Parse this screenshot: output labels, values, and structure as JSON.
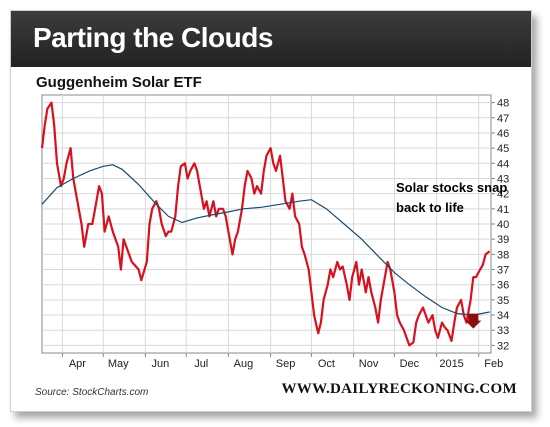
{
  "header": {
    "title": "Parting the Clouds"
  },
  "footer": {
    "source": "Source: StockCharts.com",
    "site": "WWW.DAILYRECKONING.COM"
  },
  "colors": {
    "header_bg": "#2b2b2b",
    "price_line": "#d8111e",
    "ma_line": "#1a4a6e",
    "arrow": "#8b0e0e",
    "grid": "#d9d9d9",
    "axis": "#888888"
  },
  "chart_data": {
    "type": "line",
    "title": "Guggenheim Solar ETF",
    "annotation": "Solar stocks snap back to life",
    "x_start": "2014-03-17",
    "x_tick_labels": [
      "Apr",
      "May",
      "Jun",
      "Jul",
      "Aug",
      "Sep",
      "Oct",
      "Nov",
      "Dec",
      "2015",
      "Feb"
    ],
    "x_tick_dates": [
      "2014-04-01",
      "2014-05-01",
      "2014-06-01",
      "2014-07-01",
      "2014-08-01",
      "2014-09-01",
      "2014-10-01",
      "2014-11-01",
      "2014-12-01",
      "2015-01-01",
      "2015-02-01"
    ],
    "ylim": [
      31.5,
      48.5
    ],
    "y_ticks": [
      32,
      33,
      34,
      35,
      36,
      37,
      38,
      39,
      40,
      41,
      42,
      43,
      44,
      45,
      46,
      47,
      48
    ],
    "grid": true,
    "series": [
      {
        "style": "price",
        "points": [
          [
            "2014-03-17",
            45.0
          ],
          [
            "2014-03-19",
            46.5
          ],
          [
            "2014-03-21",
            47.6
          ],
          [
            "2014-03-24",
            48.0
          ],
          [
            "2014-03-26",
            46.5
          ],
          [
            "2014-03-28",
            44.0
          ],
          [
            "2014-03-31",
            42.5
          ],
          [
            "2014-04-02",
            43.0
          ],
          [
            "2014-04-04",
            44.0
          ],
          [
            "2014-04-07",
            45.0
          ],
          [
            "2014-04-09",
            43.0
          ],
          [
            "2014-04-11",
            42.0
          ],
          [
            "2014-04-15",
            40.0
          ],
          [
            "2014-04-17",
            38.5
          ],
          [
            "2014-04-20",
            40.0
          ],
          [
            "2014-04-23",
            40.0
          ],
          [
            "2014-04-25",
            41.0
          ],
          [
            "2014-04-28",
            42.5
          ],
          [
            "2014-04-30",
            42.0
          ],
          [
            "2014-05-02",
            39.5
          ],
          [
            "2014-05-05",
            40.5
          ],
          [
            "2014-05-08",
            39.5
          ],
          [
            "2014-05-12",
            38.5
          ],
          [
            "2014-05-14",
            37.0
          ],
          [
            "2014-05-16",
            39.0
          ],
          [
            "2014-05-20",
            38.0
          ],
          [
            "2014-05-22",
            37.5
          ],
          [
            "2014-05-27",
            37.0
          ],
          [
            "2014-05-29",
            36.3
          ],
          [
            "2014-06-02",
            37.5
          ],
          [
            "2014-06-04",
            40.0
          ],
          [
            "2014-06-06",
            41.0
          ],
          [
            "2014-06-09",
            41.5
          ],
          [
            "2014-06-11",
            41.0
          ],
          [
            "2014-06-13",
            40.0
          ],
          [
            "2014-06-16",
            39.2
          ],
          [
            "2014-06-18",
            39.5
          ],
          [
            "2014-06-20",
            39.5
          ],
          [
            "2014-06-23",
            40.5
          ],
          [
            "2014-06-25",
            42.5
          ],
          [
            "2014-06-27",
            43.8
          ],
          [
            "2014-06-30",
            44.0
          ],
          [
            "2014-07-02",
            43.0
          ],
          [
            "2014-07-04",
            43.5
          ],
          [
            "2014-07-07",
            44.0
          ],
          [
            "2014-07-09",
            43.5
          ],
          [
            "2014-07-11",
            42.5
          ],
          [
            "2014-07-14",
            41.0
          ],
          [
            "2014-07-16",
            41.5
          ],
          [
            "2014-07-18",
            40.5
          ],
          [
            "2014-07-21",
            41.5
          ],
          [
            "2014-07-23",
            40.5
          ],
          [
            "2014-07-25",
            41.0
          ],
          [
            "2014-07-28",
            41.0
          ],
          [
            "2014-07-30",
            40.5
          ],
          [
            "2014-08-01",
            39.5
          ],
          [
            "2014-08-04",
            38.0
          ],
          [
            "2014-08-06",
            39.0
          ],
          [
            "2014-08-08",
            39.5
          ],
          [
            "2014-08-11",
            41.0
          ],
          [
            "2014-08-13",
            42.5
          ],
          [
            "2014-08-15",
            43.5
          ],
          [
            "2014-08-18",
            43.0
          ],
          [
            "2014-08-20",
            42.0
          ],
          [
            "2014-08-22",
            42.5
          ],
          [
            "2014-08-25",
            42.0
          ],
          [
            "2014-08-27",
            43.5
          ],
          [
            "2014-08-29",
            44.5
          ],
          [
            "2014-09-01",
            45.0
          ],
          [
            "2014-09-03",
            44.0
          ],
          [
            "2014-09-05",
            43.5
          ],
          [
            "2014-09-08",
            44.5
          ],
          [
            "2014-09-10",
            43.0
          ],
          [
            "2014-09-12",
            41.5
          ],
          [
            "2014-09-15",
            41.0
          ],
          [
            "2014-09-17",
            42.0
          ],
          [
            "2014-09-19",
            40.5
          ],
          [
            "2014-09-22",
            40.0
          ],
          [
            "2014-09-24",
            38.5
          ],
          [
            "2014-09-26",
            38.0
          ],
          [
            "2014-09-29",
            37.0
          ],
          [
            "2014-10-01",
            35.5
          ],
          [
            "2014-10-03",
            34.0
          ],
          [
            "2014-10-06",
            32.8
          ],
          [
            "2014-10-08",
            33.5
          ],
          [
            "2014-10-10",
            35.0
          ],
          [
            "2014-10-13",
            36.0
          ],
          [
            "2014-10-15",
            37.0
          ],
          [
            "2014-10-17",
            36.5
          ],
          [
            "2014-10-20",
            37.5
          ],
          [
            "2014-10-22",
            37.0
          ],
          [
            "2014-10-24",
            37.2
          ],
          [
            "2014-10-27",
            36.0
          ],
          [
            "2014-10-29",
            35.0
          ],
          [
            "2014-10-31",
            36.5
          ],
          [
            "2014-11-03",
            37.5
          ],
          [
            "2014-11-05",
            36.0
          ],
          [
            "2014-11-07",
            37.0
          ],
          [
            "2014-11-10",
            35.5
          ],
          [
            "2014-11-12",
            36.5
          ],
          [
            "2014-11-14",
            35.5
          ],
          [
            "2014-11-17",
            34.5
          ],
          [
            "2014-11-19",
            33.5
          ],
          [
            "2014-11-21",
            35.0
          ],
          [
            "2014-11-24",
            36.5
          ],
          [
            "2014-11-26",
            37.5
          ],
          [
            "2014-11-28",
            37.0
          ],
          [
            "2014-12-01",
            35.5
          ],
          [
            "2014-12-03",
            34.0
          ],
          [
            "2014-12-05",
            33.5
          ],
          [
            "2014-12-08",
            33.0
          ],
          [
            "2014-12-10",
            32.5
          ],
          [
            "2014-12-12",
            32.0
          ],
          [
            "2014-12-15",
            32.2
          ],
          [
            "2014-12-17",
            33.5
          ],
          [
            "2014-12-19",
            34.0
          ],
          [
            "2014-12-22",
            34.5
          ],
          [
            "2014-12-24",
            34.0
          ],
          [
            "2014-12-26",
            33.5
          ],
          [
            "2014-12-29",
            34.0
          ],
          [
            "2014-12-31",
            33.0
          ],
          [
            "2015-01-02",
            32.5
          ],
          [
            "2015-01-05",
            33.5
          ],
          [
            "2015-01-07",
            33.2
          ],
          [
            "2015-01-09",
            33.0
          ],
          [
            "2015-01-12",
            32.3
          ],
          [
            "2015-01-14",
            33.5
          ],
          [
            "2015-01-16",
            34.5
          ],
          [
            "2015-01-19",
            35.0
          ],
          [
            "2015-01-21",
            34.0
          ],
          [
            "2015-01-23",
            33.5
          ],
          [
            "2015-01-26",
            35.0
          ],
          [
            "2015-01-28",
            36.5
          ],
          [
            "2015-01-30",
            36.5
          ],
          [
            "2015-02-02",
            37.0
          ],
          [
            "2015-02-04",
            37.3
          ],
          [
            "2015-02-06",
            38.0
          ],
          [
            "2015-02-09",
            38.2
          ]
        ]
      },
      {
        "style": "moving_average",
        "points": [
          [
            "2014-03-17",
            41.3
          ],
          [
            "2014-03-28",
            42.4
          ],
          [
            "2014-04-09",
            43.0
          ],
          [
            "2014-04-21",
            43.5
          ],
          [
            "2014-05-01",
            43.8
          ],
          [
            "2014-05-08",
            43.9
          ],
          [
            "2014-05-15",
            43.6
          ],
          [
            "2014-05-27",
            42.6
          ],
          [
            "2014-06-08",
            41.4
          ],
          [
            "2014-06-18",
            40.5
          ],
          [
            "2014-06-28",
            40.1
          ],
          [
            "2014-07-09",
            40.4
          ],
          [
            "2014-07-20",
            40.6
          ],
          [
            "2014-08-01",
            40.8
          ],
          [
            "2014-08-12",
            41.0
          ],
          [
            "2014-08-25",
            41.1
          ],
          [
            "2014-09-08",
            41.3
          ],
          [
            "2014-09-22",
            41.5
          ],
          [
            "2014-10-01",
            41.6
          ],
          [
            "2014-10-12",
            41.0
          ],
          [
            "2014-10-25",
            40.0
          ],
          [
            "2014-11-07",
            39.0
          ],
          [
            "2014-11-20",
            37.8
          ],
          [
            "2014-12-01",
            36.8
          ],
          [
            "2014-12-12",
            36.0
          ],
          [
            "2014-12-24",
            35.2
          ],
          [
            "2015-01-05",
            34.5
          ],
          [
            "2015-01-16",
            34.1
          ],
          [
            "2015-01-28",
            34.0
          ],
          [
            "2015-02-09",
            34.2
          ]
        ]
      }
    ],
    "arrow_marker": {
      "date": "2015-01-28",
      "value": 33.5
    }
  }
}
